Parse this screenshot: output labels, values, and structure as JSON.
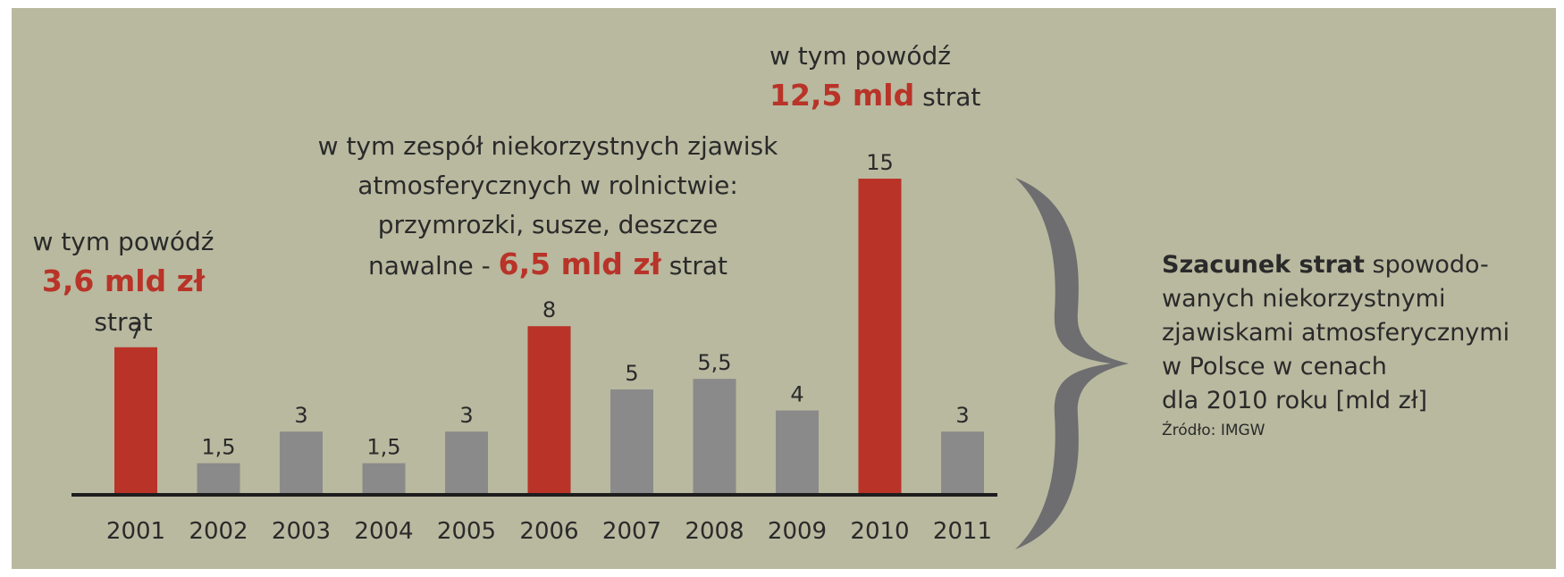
{
  "chart_data": {
    "type": "bar",
    "categories": [
      "2001",
      "2002",
      "2003",
      "2004",
      "2005",
      "2006",
      "2007",
      "2008",
      "2009",
      "2010",
      "2011"
    ],
    "values": [
      7,
      1.5,
      3,
      1.5,
      3,
      8,
      5,
      5.5,
      4,
      15,
      3
    ],
    "value_labels": [
      "7",
      "1,5",
      "3",
      "1,5",
      "3",
      "8",
      "5",
      "5,5",
      "4",
      "15",
      "3"
    ],
    "highlighted_years": [
      "2001",
      "2006",
      "2010"
    ],
    "ylim": [
      0,
      15
    ],
    "grid": false,
    "colors": {
      "highlight": "#b93328",
      "default": "#8b8a8a",
      "axis": "#1d1d1d",
      "background": "#b8b99f",
      "brace": "#6e6e70"
    }
  },
  "annotations": {
    "a2001": {
      "line1": "w tym powódź",
      "value": "3,6 mld zł",
      "suffix": "strat"
    },
    "a2006": {
      "line1": "w tym zespół niekorzystnych zjawisk",
      "line2": "atmosferycznych w rolnictwie:",
      "line3": "przymrozki, susze, deszcze",
      "line4_prefix": "nawalne -",
      "value": "6,5 mld zł",
      "suffix": "strat"
    },
    "a2010": {
      "line1": "w tym powódź",
      "value": "12,5 mld",
      "suffix": "strat"
    }
  },
  "description": {
    "bold": "Szacunek strat",
    "line1_rest": "spowodo-",
    "line2": "wanych niekorzystnymi",
    "line3": "zjawiskami atmosferycznymi",
    "line4": "w Polsce w cenach",
    "line5": "dla 2010 roku [mld zł]",
    "source": "Źródło: IMGW"
  }
}
